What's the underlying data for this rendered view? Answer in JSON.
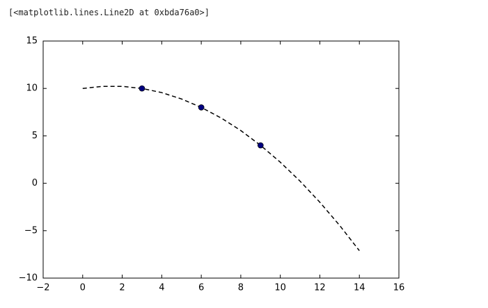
{
  "output_text": "[<matplotlib.lines.Line2D at 0xbda76a0>]",
  "chart_data": {
    "type": "line",
    "series": [
      {
        "kind": "line",
        "style": "dashed",
        "color": "#000000",
        "x": [
          0,
          1,
          2,
          3,
          4,
          5,
          6,
          7,
          8,
          9,
          10,
          11,
          12,
          13,
          14
        ],
        "values": [
          10,
          10.22,
          10.22,
          10,
          9.56,
          8.89,
          8,
          6.89,
          5.56,
          4,
          2.22,
          0.22,
          -2,
          -4.44,
          -7.11
        ]
      },
      {
        "kind": "points",
        "color": "#000080",
        "x": [
          3,
          6,
          9
        ],
        "values": [
          10,
          8,
          4
        ]
      }
    ],
    "xlim": [
      -2,
      16
    ],
    "xticks": [
      {
        "value": -2,
        "label": "−2"
      },
      0,
      2,
      4,
      6,
      8,
      10,
      12,
      14,
      16
    ],
    "ylim": [
      -10,
      15
    ],
    "yticks": [
      {
        "value": -10,
        "label": "−10"
      },
      {
        "value": -5,
        "label": "−5"
      },
      0,
      5,
      10,
      15
    ]
  }
}
